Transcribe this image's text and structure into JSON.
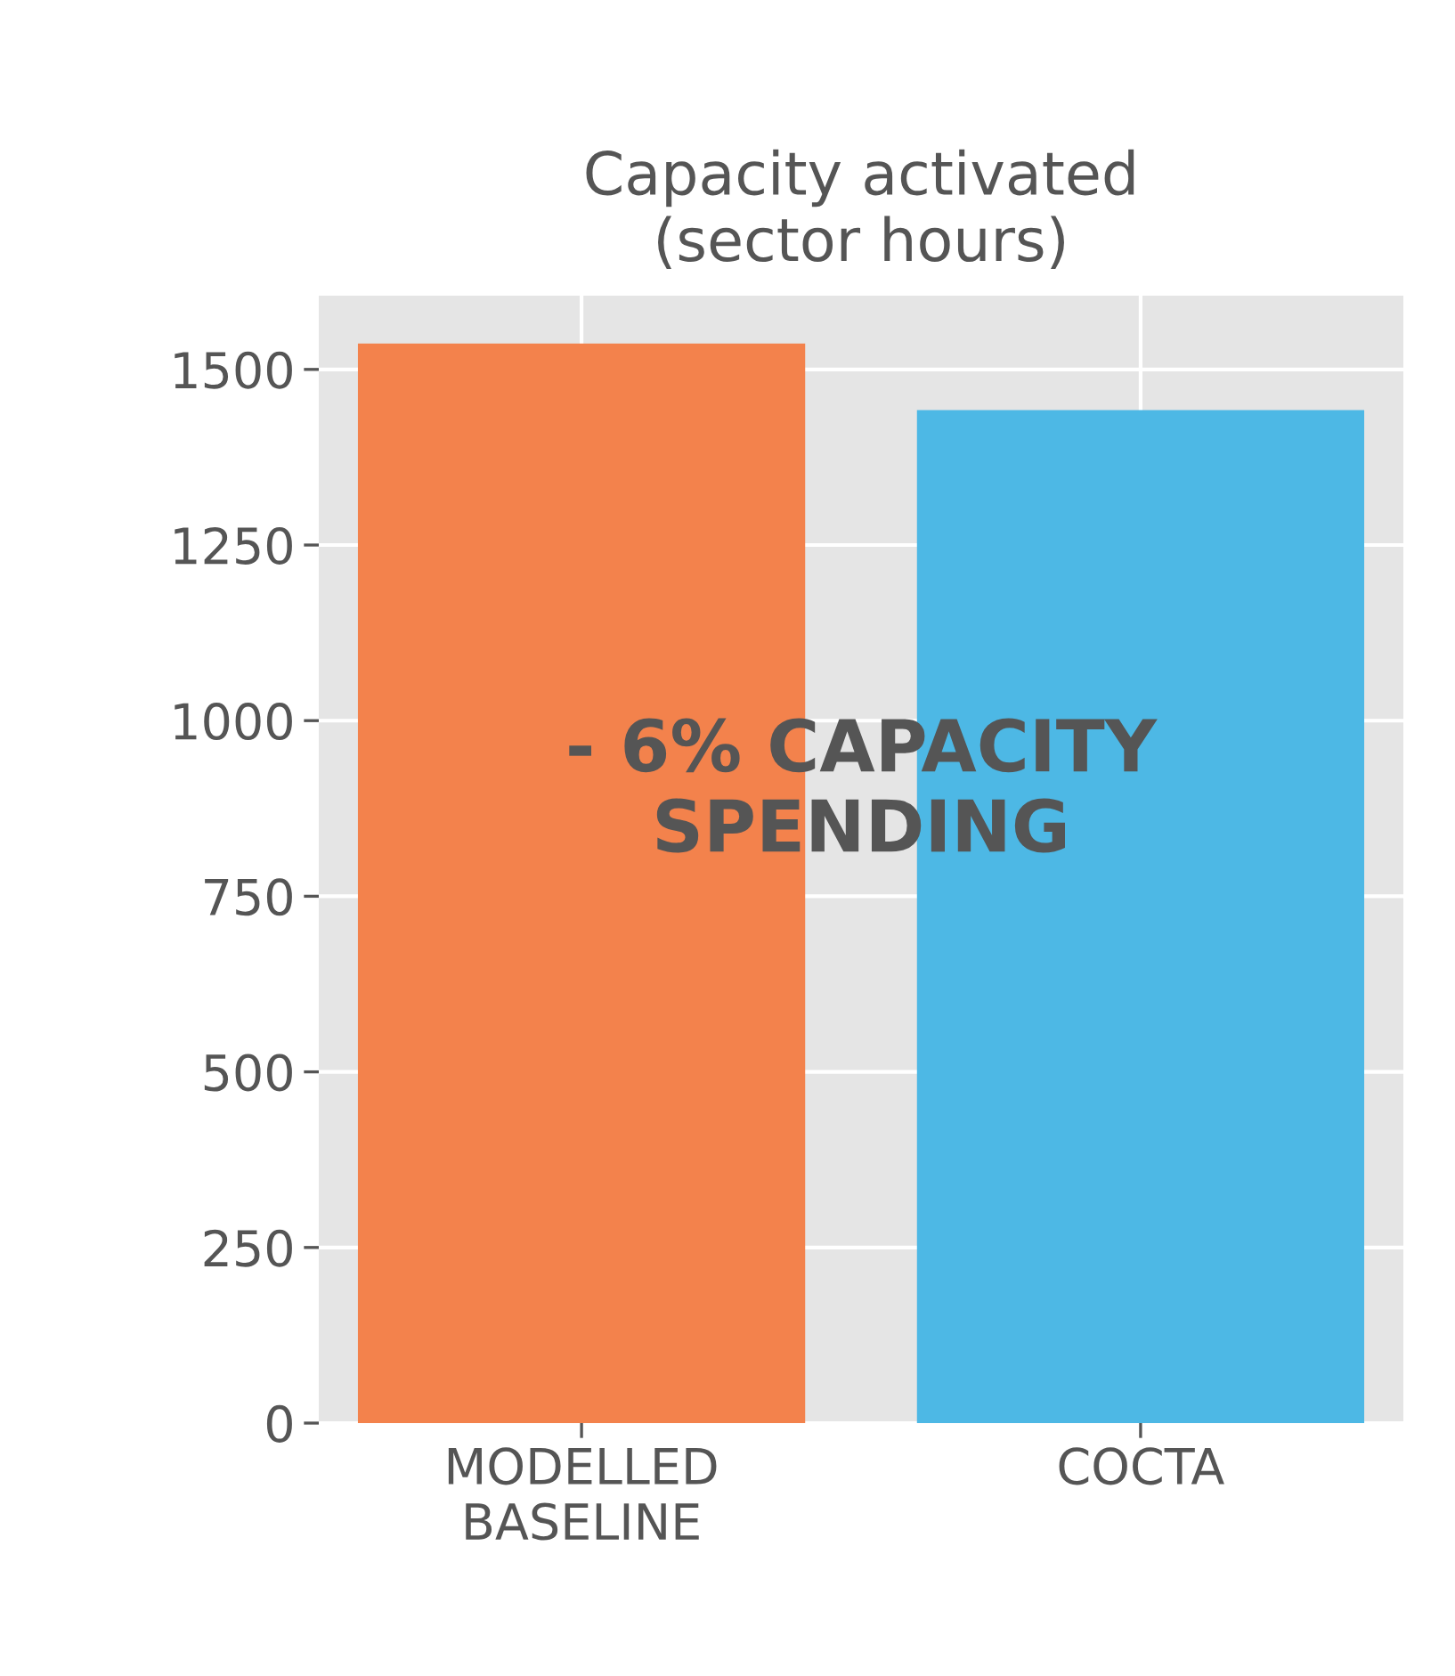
{
  "chart_data": {
    "type": "bar",
    "title": "Capacity activated\n(sector hours)",
    "categories": [
      "MODELLED\nBASELINE",
      "COCTA"
    ],
    "values": [
      1537,
      1442
    ],
    "colors": [
      "#f3824c",
      "#4db8e5"
    ],
    "ylim": [
      0,
      1605
    ],
    "yticks": [
      0,
      250,
      500,
      750,
      1000,
      1250,
      1500
    ],
    "grid": true,
    "annotations": [
      "- 6% CAPACITY\nSPENDING"
    ]
  }
}
